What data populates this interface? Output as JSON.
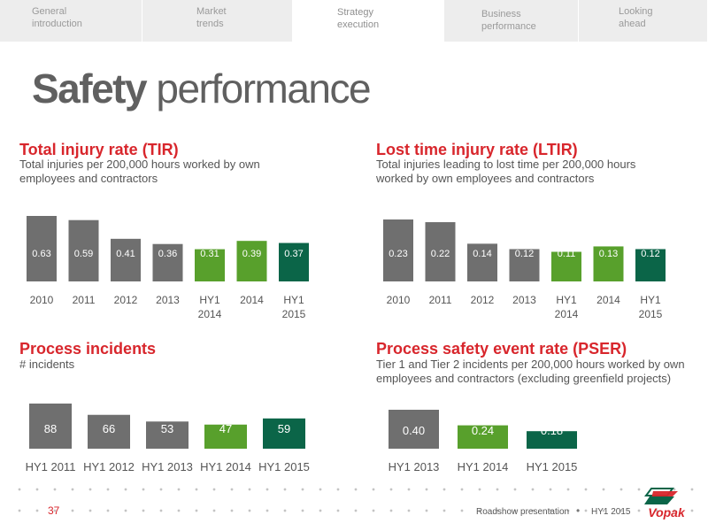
{
  "colors": {
    "gray": "#6f6f6f",
    "green": "#58a02c",
    "dark_green": "#0b6548",
    "red": "#d8262c"
  },
  "tabs": [
    {
      "line1": "General",
      "line2": "introduction",
      "active": false
    },
    {
      "line1": "Market",
      "line2": "trends",
      "active": false
    },
    {
      "line1": "Strategy",
      "line2": "execution",
      "active": true
    },
    {
      "line1": "Business",
      "line2": "performance",
      "active": false
    },
    {
      "line1": "Looking",
      "line2": "ahead",
      "active": false
    }
  ],
  "page": {
    "title_bold": "Safety",
    "title_rest": " performance"
  },
  "sections": {
    "tir": {
      "title": "Total injury rate (TIR)",
      "subtitle_l1": "Total injuries per 200,000 hours worked by own",
      "subtitle_l2": "employees and contractors"
    },
    "ltir": {
      "title": "Lost time injury rate (LTIR)",
      "subtitle_l1": "Total injuries leading to lost time per 200,000 hours",
      "subtitle_l2": "worked by own employees and contractors"
    },
    "pi": {
      "title": "Process incidents",
      "subtitle_l1": "# incidents"
    },
    "pser": {
      "title": "Process safety event rate (PSER)",
      "subtitle_l1": "Tier 1 and Tier 2 incidents per 200,000 hours worked by own",
      "subtitle_l2": "employees and contractors (excluding greenfield projects)"
    }
  },
  "chart_data": [
    {
      "id": "tir",
      "type": "bar",
      "categories": [
        "2010",
        "2011",
        "2012",
        "2013",
        "HY1\n2014",
        "2014",
        "HY1\n2015"
      ],
      "values": [
        0.63,
        0.59,
        0.41,
        0.36,
        0.31,
        0.39,
        0.37
      ],
      "labels": [
        "0.63",
        "0.59",
        "0.41",
        "0.36",
        "0.31",
        "0.39",
        "0.37"
      ],
      "colors": [
        "gray",
        "gray",
        "gray",
        "gray",
        "green",
        "green",
        "dark_green"
      ]
    },
    {
      "id": "ltir",
      "type": "bar",
      "categories": [
        "2010",
        "2011",
        "2012",
        "2013",
        "HY1\n2014",
        "2014",
        "HY1\n2015"
      ],
      "values": [
        0.23,
        0.22,
        0.14,
        0.12,
        0.11,
        0.13,
        0.12
      ],
      "labels": [
        "0.23",
        "0.22",
        "0.14",
        "0.12",
        "0.11",
        "0.13",
        "0.12"
      ],
      "colors": [
        "gray",
        "gray",
        "gray",
        "gray",
        "green",
        "green",
        "dark_green"
      ]
    },
    {
      "id": "pi",
      "type": "bar",
      "categories": [
        "HY1 2011",
        "HY1 2012",
        "HY1 2013",
        "HY1 2014",
        "HY1 2015"
      ],
      "values": [
        88,
        66,
        53,
        47,
        59
      ],
      "labels": [
        "88",
        "66",
        "53",
        "47",
        "59"
      ],
      "colors": [
        "gray",
        "gray",
        "gray",
        "green",
        "dark_green"
      ]
    },
    {
      "id": "pser",
      "type": "bar",
      "categories": [
        "HY1 2013",
        "HY1 2014",
        "HY1 2015"
      ],
      "values": [
        0.4,
        0.24,
        0.18
      ],
      "labels": [
        "0.40",
        "0.24",
        "0.18"
      ],
      "colors": [
        "gray",
        "green",
        "dark_green"
      ]
    }
  ],
  "footer": {
    "page_number": "37",
    "presentation": "Roadshow presentation",
    "separator": "•",
    "period": "HY1 2015",
    "logo_text": "Vopak"
  }
}
